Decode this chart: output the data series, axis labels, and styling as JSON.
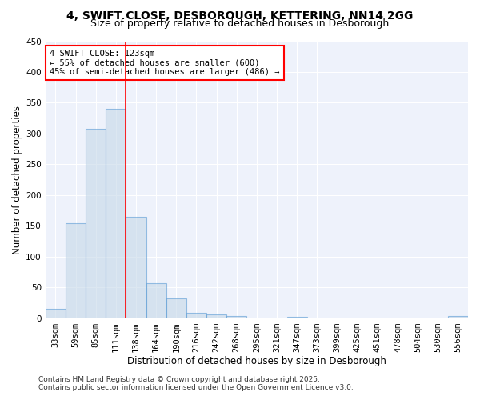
{
  "title": "4, SWIFT CLOSE, DESBOROUGH, KETTERING, NN14 2GG",
  "subtitle": "Size of property relative to detached houses in Desborough",
  "xlabel": "Distribution of detached houses by size in Desborough",
  "ylabel": "Number of detached properties",
  "bar_labels": [
    "33sqm",
    "59sqm",
    "85sqm",
    "111sqm",
    "138sqm",
    "164sqm",
    "190sqm",
    "216sqm",
    "242sqm",
    "268sqm",
    "295sqm",
    "321sqm",
    "347sqm",
    "373sqm",
    "399sqm",
    "425sqm",
    "451sqm",
    "478sqm",
    "504sqm",
    "530sqm",
    "556sqm"
  ],
  "bar_values": [
    15,
    155,
    308,
    340,
    165,
    57,
    33,
    9,
    6,
    4,
    0,
    0,
    3,
    0,
    0,
    0,
    0,
    0,
    0,
    0,
    4
  ],
  "bar_color": "#c5d8e8",
  "bar_edge_color": "#5b9bd5",
  "bar_alpha": 0.6,
  "red_line_x": 3.5,
  "annotation_line1": "4 SWIFT CLOSE: 123sqm",
  "annotation_line2": "← 55% of detached houses are smaller (600)",
  "annotation_line3": "45% of semi-detached houses are larger (486) →",
  "ylim": [
    0,
    450
  ],
  "yticks": [
    0,
    50,
    100,
    150,
    200,
    250,
    300,
    350,
    400,
    450
  ],
  "bg_color": "#eef2fb",
  "footer_line1": "Contains HM Land Registry data © Crown copyright and database right 2025.",
  "footer_line2": "Contains public sector information licensed under the Open Government Licence v3.0.",
  "title_fontsize": 10,
  "subtitle_fontsize": 9,
  "axis_label_fontsize": 8.5,
  "tick_fontsize": 7.5,
  "footer_fontsize": 6.5
}
